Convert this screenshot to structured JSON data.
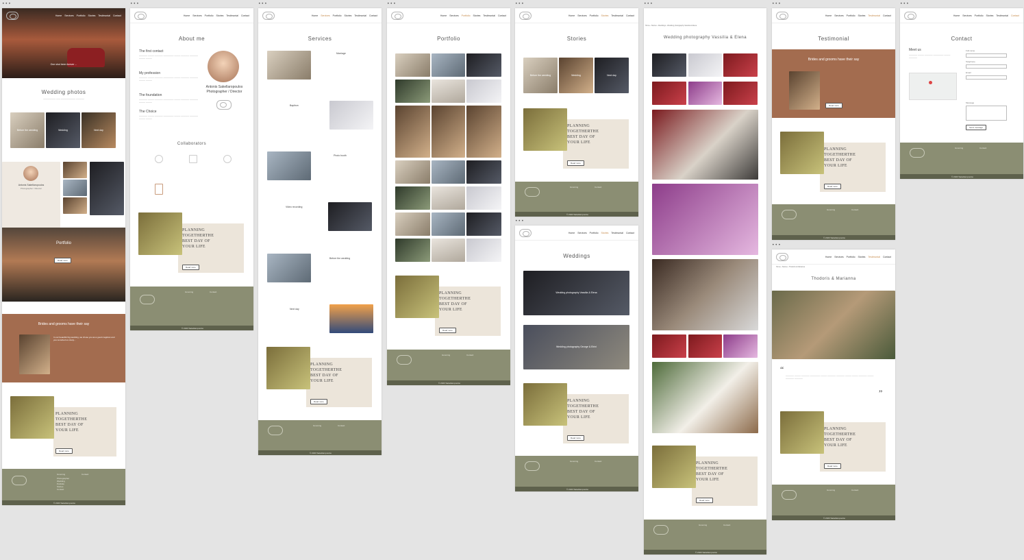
{
  "nav": {
    "items": [
      "Home",
      "Services",
      "Portfolio",
      "Stories",
      "Testimonial",
      "Contact"
    ]
  },
  "footer": {
    "menu_title": "Gnoming",
    "contact_title": "Contact",
    "links": [
      "Photographer",
      "Wedding",
      "Portfolio",
      "Stories",
      "Contact"
    ],
    "copyright": "© 2023 Sakellaropoulos"
  },
  "plan": {
    "line1": "PLANNING",
    "line2": "TOGETHERTHE",
    "line3": "BEST DAY OF",
    "line4": "YOUR LIFE",
    "button": "Read more"
  },
  "home": {
    "hero_caption": "One shot been forever ...",
    "wedding_title": "Wedding photos",
    "tiles": [
      "Before the wedding",
      "Wedding",
      "Next day"
    ],
    "person_name": "Antonis Sakellaropoulos",
    "person_role": "Photographer / Director",
    "portfolio_title": "Portfolio",
    "portfolio_button": "Read more",
    "testi_title": "Brides and grooms have their say",
    "testi_lead": "In our beautiful big wedding, we chose you as a good magician and you recorded us nicely..."
  },
  "about": {
    "title": "About me",
    "sections": [
      "The first contact",
      "My profession",
      "The foundation",
      "The Choice"
    ],
    "name": "Antonis Sakellaropoulos",
    "role": "Photographer / Director",
    "collab_title": "Collaborators"
  },
  "services": {
    "title": "Services",
    "items": [
      "Marriage",
      "Baptism",
      "Photo booth",
      "Video recording",
      "Before the wedding",
      "Next day"
    ]
  },
  "portfolio": {
    "title": "Portfolio"
  },
  "stories": {
    "title": "Stories",
    "tiles": [
      "Before the wedding",
      "Wedding",
      "Next day"
    ]
  },
  "weddings": {
    "title": "Weddings",
    "items": [
      "Wedding photography Vassilia & Elena",
      "Wedding photography George & Eirini"
    ]
  },
  "gallery": {
    "title": "Wedding photography Vassilia & Elena",
    "breadcrumb": "Home › Stories › Weddings › Wedding photography Vassilia & Elena"
  },
  "testimonial": {
    "title": "Testimonial",
    "heading": "Brides and grooms have their say",
    "button": "Read more"
  },
  "story2": {
    "title": "Thodoris & Marianna",
    "breadcrumb": "Home › Stories › Thodoris & Marianna"
  },
  "contact": {
    "title": "Contact",
    "meet": "Meet us",
    "fields": [
      "Full name",
      "Telephone",
      "Email",
      "Message"
    ],
    "button": "Send message"
  }
}
